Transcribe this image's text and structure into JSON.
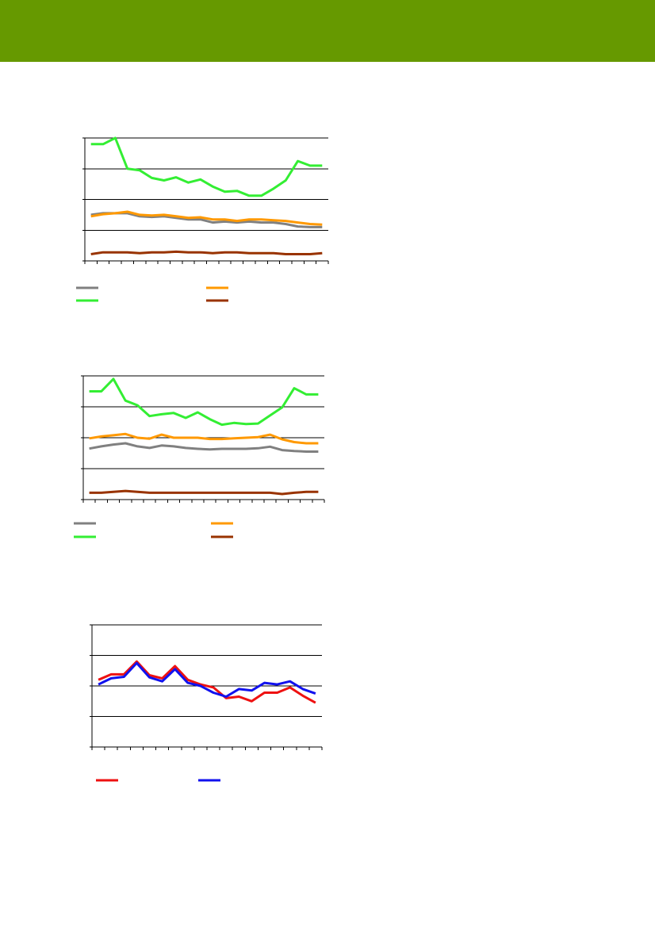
{
  "page": {
    "header_color": "#669900"
  },
  "chart_data": [
    {
      "type": "line",
      "x_count": 20,
      "ylim": [
        0,
        4
      ],
      "grid": true,
      "legend": "bottom",
      "series": [
        {
          "color": "#808080",
          "values": [
            1.5,
            1.55,
            1.55,
            1.55,
            1.45,
            1.43,
            1.45,
            1.4,
            1.35,
            1.35,
            1.25,
            1.28,
            1.25,
            1.28,
            1.25,
            1.25,
            1.2,
            1.12,
            1.1,
            1.1
          ]
        },
        {
          "color": "#ff9900",
          "values": [
            1.45,
            1.52,
            1.55,
            1.6,
            1.5,
            1.48,
            1.5,
            1.45,
            1.4,
            1.42,
            1.35,
            1.35,
            1.3,
            1.35,
            1.35,
            1.32,
            1.3,
            1.25,
            1.2,
            1.18
          ]
        },
        {
          "color": "#33ee33",
          "values": [
            3.8,
            3.8,
            4.0,
            3.0,
            2.95,
            2.7,
            2.62,
            2.72,
            2.55,
            2.65,
            2.42,
            2.25,
            2.28,
            2.12,
            2.12,
            2.35,
            2.62,
            3.25,
            3.1,
            3.1
          ]
        },
        {
          "color": "#993300",
          "values": [
            0.22,
            0.28,
            0.28,
            0.28,
            0.25,
            0.28,
            0.28,
            0.3,
            0.28,
            0.28,
            0.25,
            0.28,
            0.28,
            0.25,
            0.25,
            0.25,
            0.22,
            0.22,
            0.22,
            0.25
          ]
        }
      ]
    },
    {
      "type": "line",
      "x_count": 20,
      "ylim": [
        0,
        4
      ],
      "grid": true,
      "legend": "bottom",
      "series": [
        {
          "color": "#808080",
          "values": [
            1.65,
            1.72,
            1.78,
            1.82,
            1.72,
            1.67,
            1.75,
            1.72,
            1.67,
            1.64,
            1.62,
            1.64,
            1.64,
            1.64,
            1.66,
            1.71,
            1.6,
            1.57,
            1.55,
            1.55
          ]
        },
        {
          "color": "#ff9900",
          "values": [
            1.98,
            2.04,
            2.08,
            2.12,
            2.0,
            1.97,
            2.1,
            2.0,
            2.0,
            2.0,
            1.96,
            1.96,
            1.98,
            2.0,
            2.02,
            2.1,
            1.95,
            1.86,
            1.82,
            1.82
          ]
        },
        {
          "color": "#33ee33",
          "values": [
            3.5,
            3.5,
            3.9,
            3.2,
            3.05,
            2.7,
            2.76,
            2.8,
            2.64,
            2.82,
            2.6,
            2.42,
            2.48,
            2.44,
            2.46,
            2.72,
            2.98,
            3.6,
            3.4,
            3.4
          ]
        },
        {
          "color": "#993300",
          "values": [
            0.22,
            0.22,
            0.25,
            0.28,
            0.25,
            0.22,
            0.22,
            0.22,
            0.22,
            0.22,
            0.22,
            0.22,
            0.22,
            0.22,
            0.22,
            0.22,
            0.18,
            0.22,
            0.25,
            0.25
          ]
        }
      ]
    },
    {
      "type": "line",
      "x_count": 18,
      "ylim": [
        0,
        4
      ],
      "grid": true,
      "legend": "bottom",
      "series": [
        {
          "color": "#ee1111",
          "values": [
            2.2,
            2.38,
            2.38,
            2.8,
            2.35,
            2.25,
            2.65,
            2.2,
            2.05,
            1.95,
            1.6,
            1.65,
            1.5,
            1.78,
            1.78,
            1.95,
            1.68,
            1.45
          ]
        },
        {
          "color": "#1111ee",
          "values": [
            2.05,
            2.25,
            2.3,
            2.75,
            2.28,
            2.15,
            2.55,
            2.1,
            2.0,
            1.78,
            1.65,
            1.9,
            1.85,
            2.1,
            2.05,
            2.15,
            1.9,
            1.75
          ]
        }
      ]
    }
  ]
}
